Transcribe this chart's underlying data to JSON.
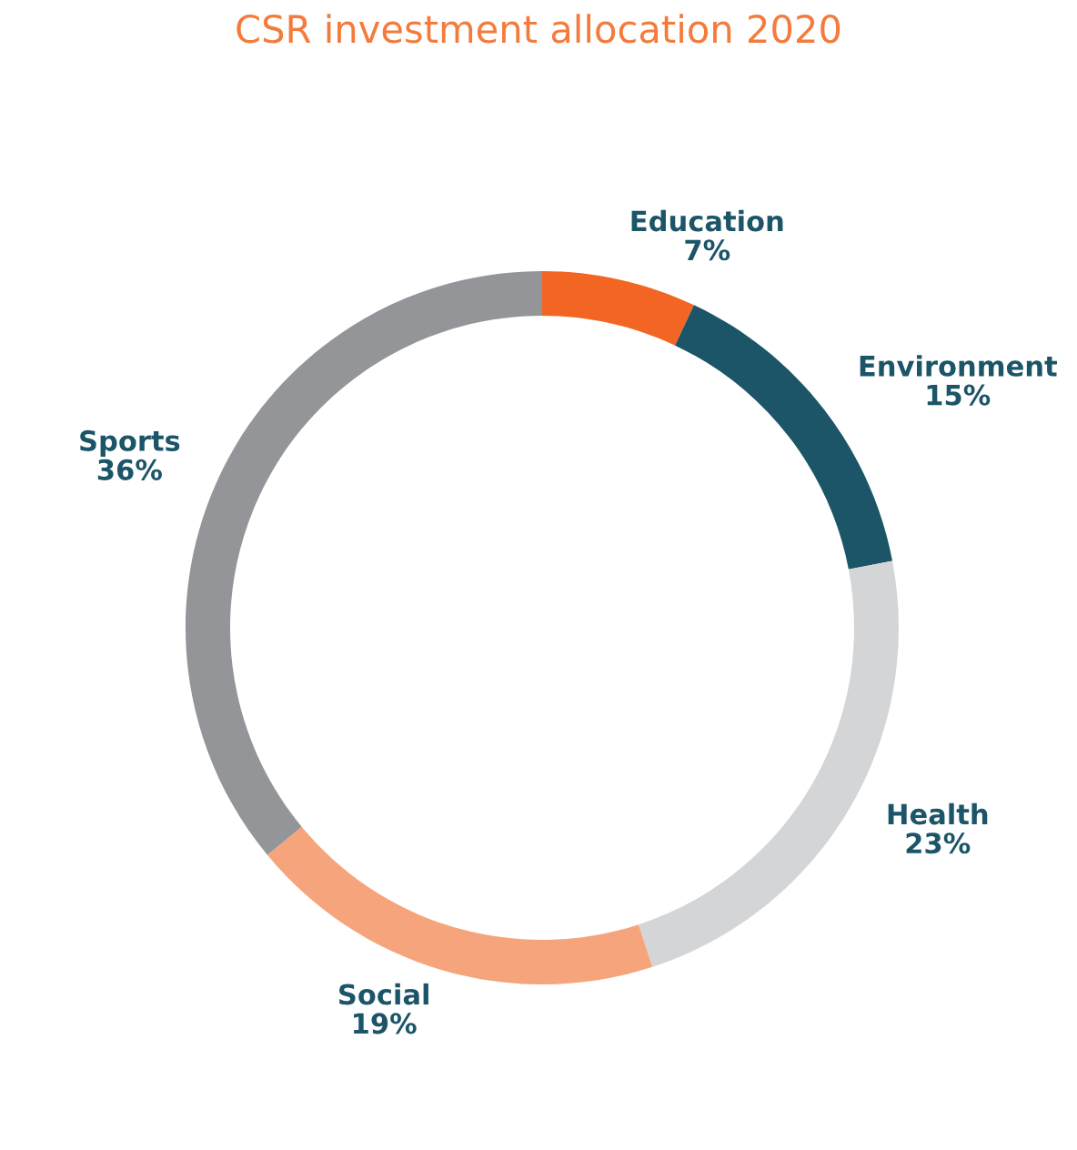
{
  "chart_data": {
    "type": "donut",
    "title": "CSR investment allocation 2020",
    "categories": [
      "Education",
      "Environment",
      "Health",
      "Social",
      "Sports"
    ],
    "values": [
      7,
      15,
      23,
      19,
      36
    ],
    "value_labels": [
      "7%",
      "15%",
      "23%",
      "19%",
      "36%"
    ],
    "colors": [
      "#f26522",
      "#1b5567",
      "#d4d5d6",
      "#f6a47c",
      "#939598"
    ],
    "legend": false
  }
}
